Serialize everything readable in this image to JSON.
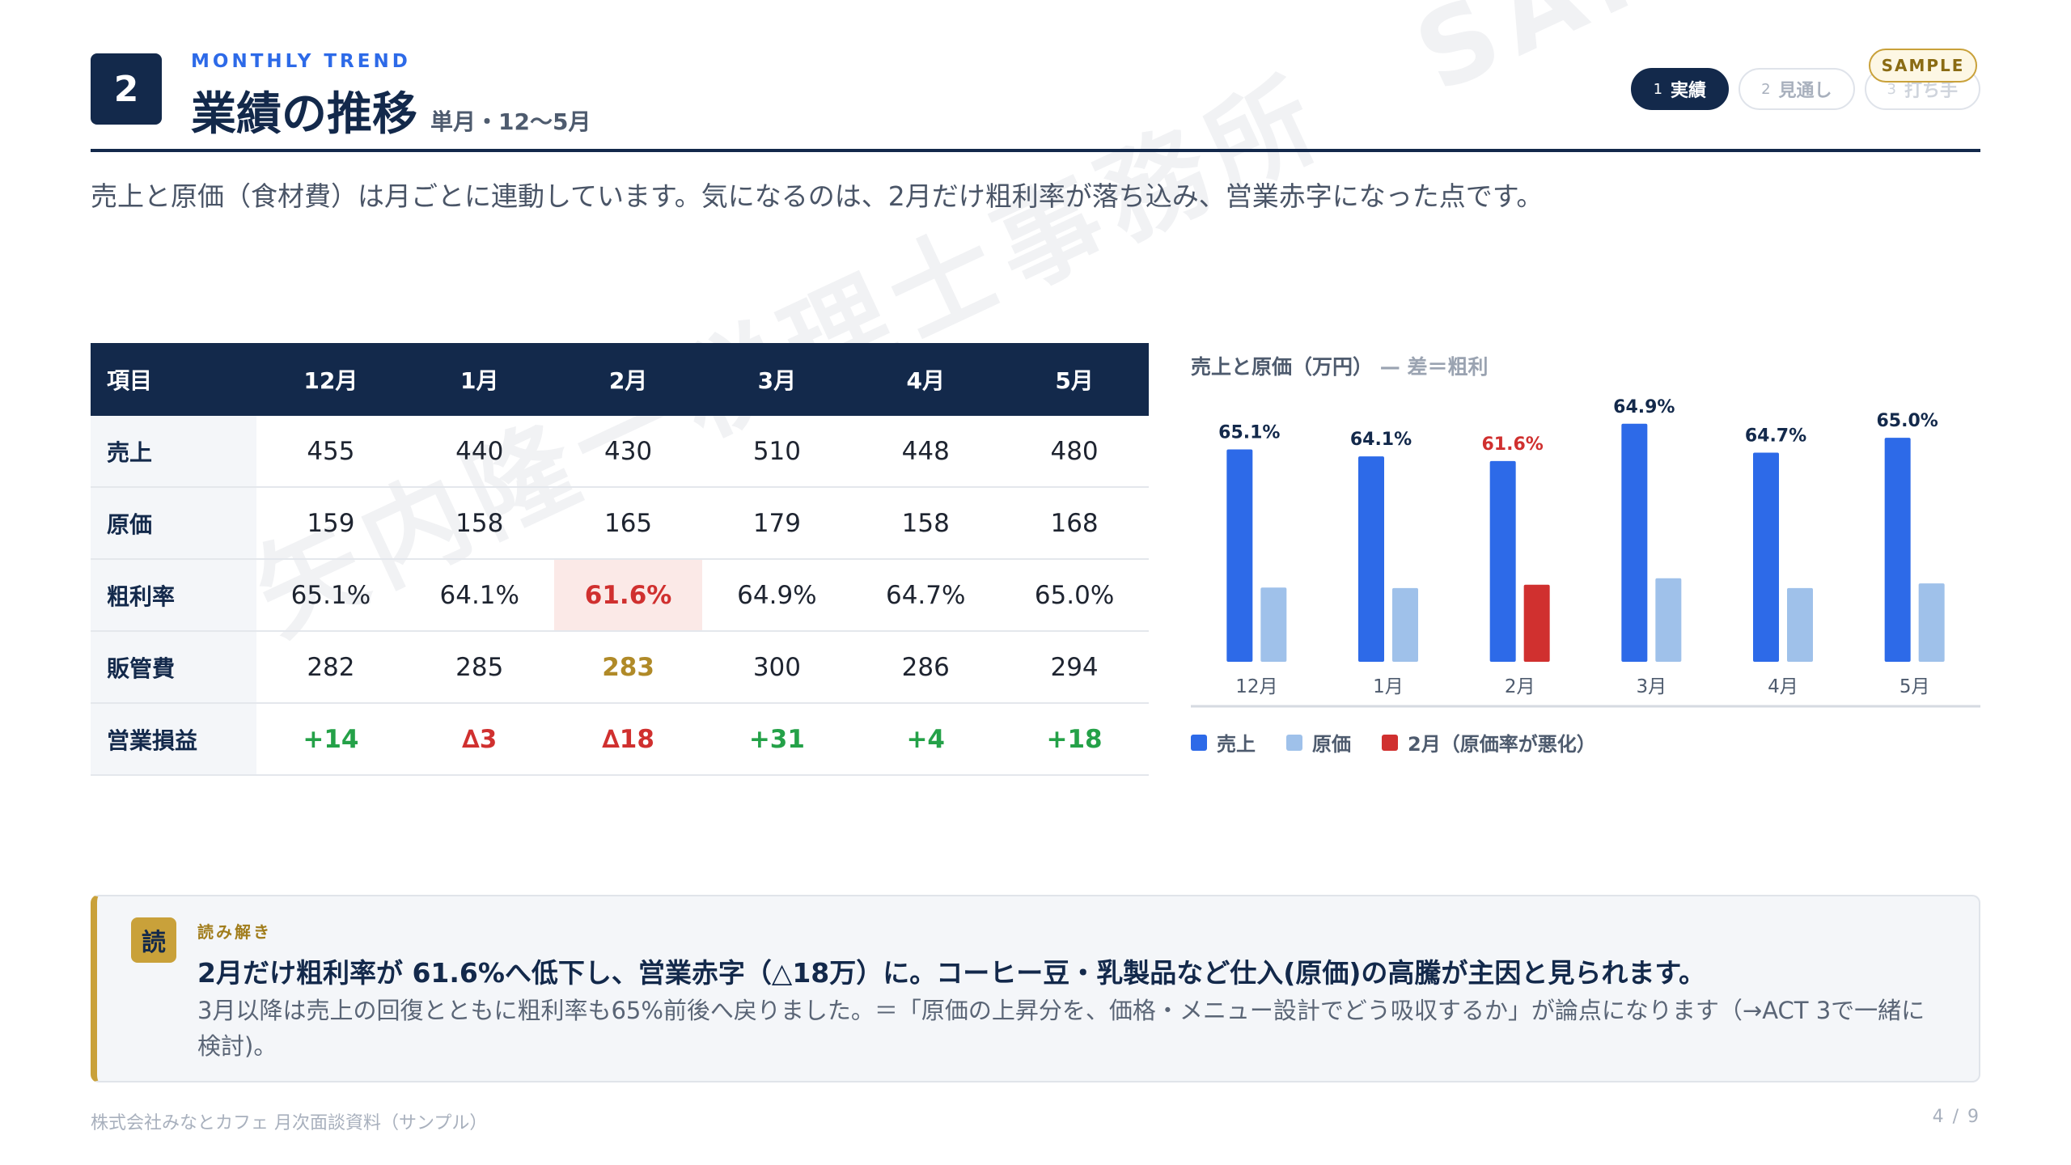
{
  "header": {
    "section_number": "2",
    "eyebrow": "MONTHLY TREND",
    "title": "業績の推移",
    "subtitle": "単月・12〜5月",
    "sample_badge": "SAMPLE"
  },
  "steps": [
    {
      "num": "1",
      "label": "実績",
      "active": true
    },
    {
      "num": "2",
      "label": "見通し",
      "active": false
    },
    {
      "num": "3",
      "label": "打ち手",
      "active": false
    }
  ],
  "lead": "売上と原価（食材費）は月ごとに連動しています。気になるのは、2月だけ粗利率が落ち込み、営業赤字になった点です。",
  "table": {
    "header_label": "項目",
    "months": [
      "12月",
      "1月",
      "2月",
      "3月",
      "4月",
      "5月"
    ],
    "rows": [
      {
        "label": "売上",
        "values": [
          "455",
          "440",
          "430",
          "510",
          "448",
          "480"
        ]
      },
      {
        "label": "原価",
        "values": [
          "159",
          "158",
          "165",
          "179",
          "158",
          "168"
        ]
      },
      {
        "label": "粗利率",
        "values": [
          "65.1%",
          "64.1%",
          "61.6%",
          "64.9%",
          "64.7%",
          "65.0%"
        ]
      },
      {
        "label": "販管費",
        "values": [
          "282",
          "285",
          "283",
          "300",
          "286",
          "294"
        ]
      },
      {
        "label": "営業損益",
        "values": [
          "+14",
          "∆3",
          "∆18",
          "+31",
          "+4",
          "+18"
        ]
      }
    ]
  },
  "chart_title": {
    "main": "売上と原価（万円）",
    "note": "— 差＝粗利"
  },
  "chart_data": {
    "type": "bar",
    "categories": [
      "12月",
      "1月",
      "2月",
      "3月",
      "4月",
      "5月"
    ],
    "series": [
      {
        "name": "売上",
        "values": [
          455,
          440,
          430,
          510,
          448,
          480
        ]
      },
      {
        "name": "原価",
        "values": [
          159,
          158,
          165,
          179,
          158,
          168
        ]
      }
    ],
    "bar_labels": [
      "65.1%",
      "64.1%",
      "61.6%",
      "64.9%",
      "64.7%",
      "65.0%"
    ],
    "highlight_index": 2,
    "ylim": [
      0,
      520
    ],
    "colors": {
      "sales": "#2d6ae8",
      "cost": "#9fc1ea",
      "highlight": "#d0302f"
    }
  },
  "legend": [
    {
      "label": "売上",
      "color": "#2d6ae8"
    },
    {
      "label": "原価",
      "color": "#9fc1ea"
    },
    {
      "label": "2月（原価率が悪化）",
      "color": "#d0302f"
    }
  ],
  "watermark": "矢内隆一税理士事務所　SAMPLE",
  "insight": {
    "icon": "読",
    "eyebrow": "読み解き",
    "headline": "2月だけ粗利率が 61.6%へ低下し、営業赤字（△18万）に。コーヒー豆・乳製品など仕入(原価)の高騰が主因と見られます。",
    "body": "3月以降は売上の回復とともに粗利率も65%前後へ戻りました。＝「原価の上昇分を、価格・メニュー設計でどう吸収するか」が論点になります（→ACT 3で一緒に検討)。"
  },
  "footer": {
    "left": "株式会社みなとカフェ 月次面談資料（サンプル）",
    "right": "4 / 9"
  }
}
